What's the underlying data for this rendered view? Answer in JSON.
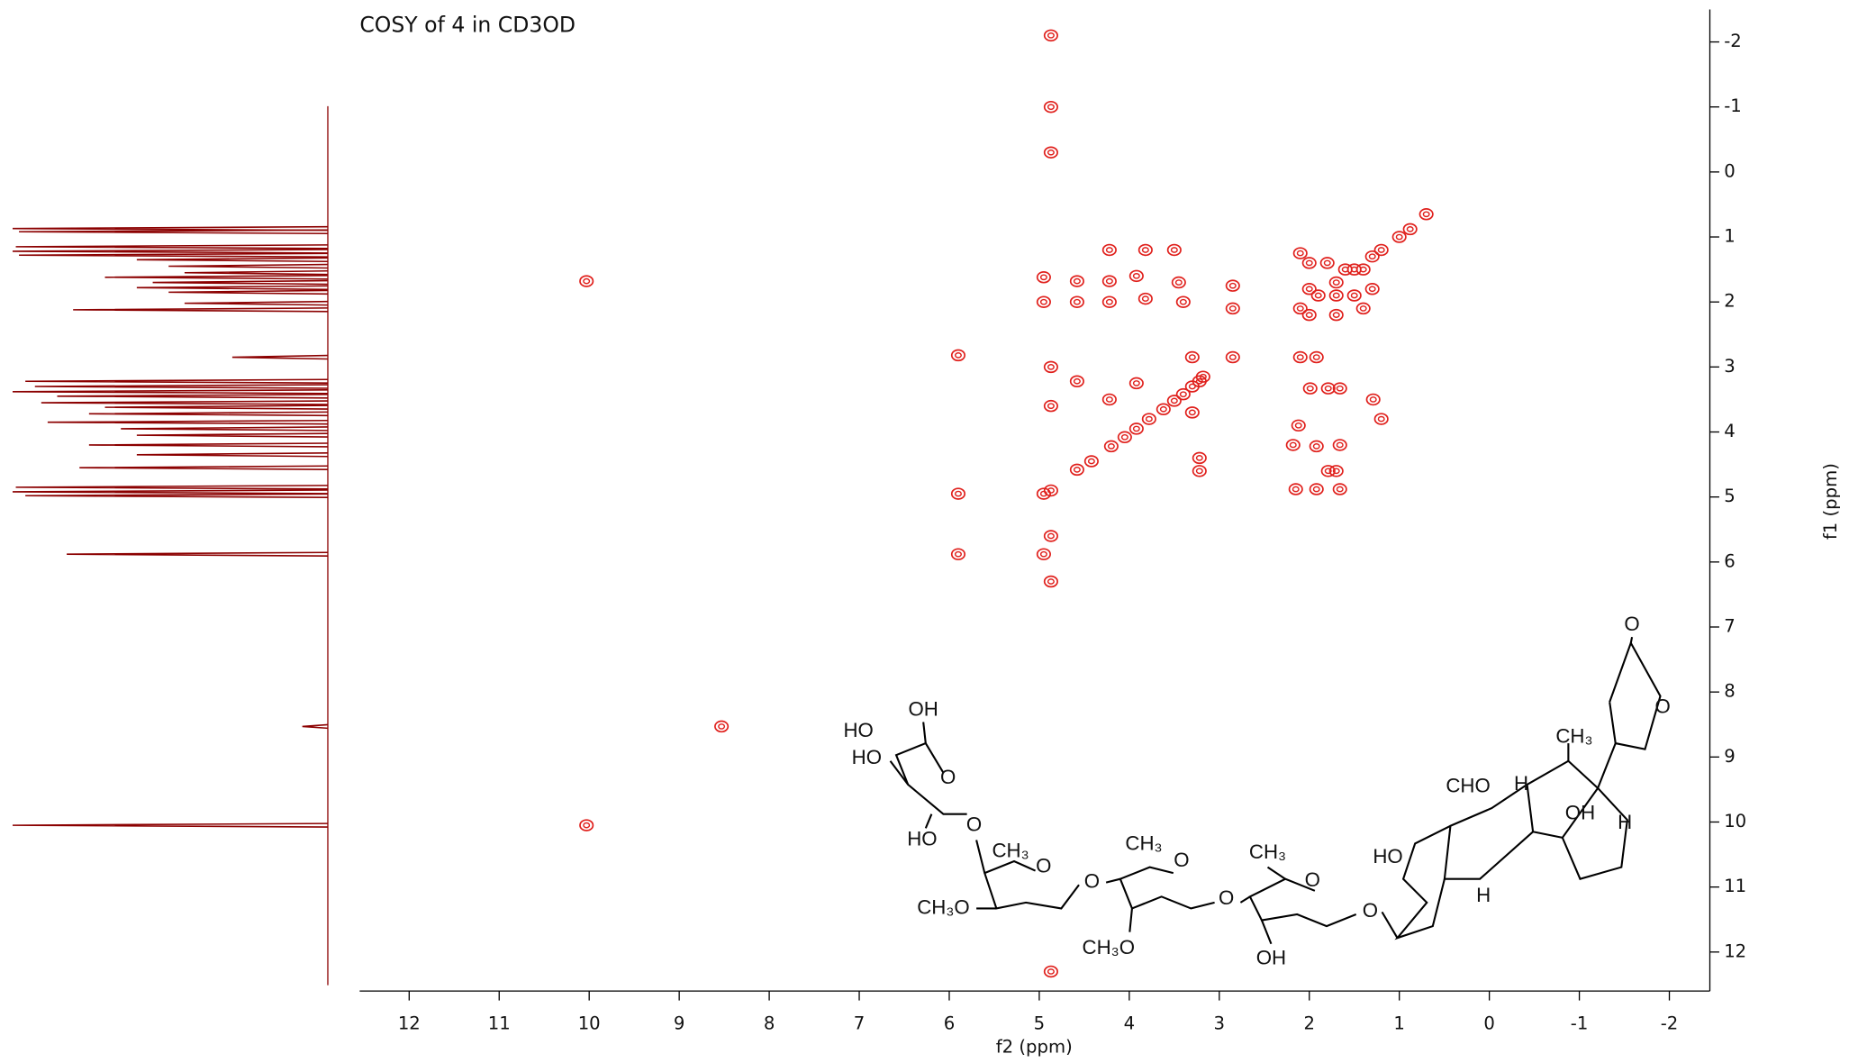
{
  "chart_data": {
    "type": "scatter",
    "title": "COSY of 4 in CD3OD",
    "xlabel": "f2 (ppm)",
    "ylabel": "f1 (ppm)",
    "xlim": [
      12.55,
      -2.45
    ],
    "ylim": [
      -2.5,
      12.6
    ],
    "xticks": [
      12,
      11,
      10,
      9,
      8,
      7,
      6,
      5,
      4,
      3,
      2,
      1,
      0,
      -1,
      -2
    ],
    "yticks": [
      -2,
      -1,
      0,
      1,
      2,
      3,
      4,
      5,
      6,
      7,
      8,
      9,
      10,
      11,
      12
    ],
    "color": "#e0201c",
    "x": [
      10.03,
      8.53,
      5.9,
      4.95,
      4.87,
      4.58,
      4.42,
      4.2,
      4.05,
      3.92,
      3.78,
      3.62,
      3.5,
      3.4,
      3.3,
      3.22,
      3.18,
      2.1,
      1.9,
      1.7,
      1.5,
      1.3,
      1.2,
      1.0,
      0.88,
      0.7,
      10.03,
      5.9,
      5.9,
      4.95,
      4.95,
      4.95,
      4.58,
      4.58,
      4.58,
      4.22,
      4.22,
      4.22,
      4.22,
      3.92,
      3.92,
      3.82,
      3.82,
      3.5,
      3.45,
      3.4,
      3.3,
      3.22,
      3.22,
      3.3,
      2.85,
      2.85,
      2.85,
      2.1,
      2.1,
      1.92,
      2.0,
      1.8,
      1.6,
      1.4,
      2.0,
      1.7,
      1.5,
      1.3,
      2.0,
      1.7,
      1.4,
      1.99,
      1.79,
      1.66,
      1.29,
      1.2,
      2.12,
      2.18,
      1.92,
      1.66,
      1.79,
      1.7,
      2.15,
      1.92,
      1.66,
      4.87,
      4.87,
      4.87,
      4.87,
      4.87,
      4.87,
      4.87,
      4.87
    ],
    "values": [
      10.05,
      8.53,
      5.88,
      4.95,
      4.9,
      4.58,
      4.45,
      4.22,
      4.08,
      3.95,
      3.8,
      3.65,
      3.52,
      3.42,
      3.3,
      3.22,
      3.15,
      2.1,
      1.9,
      1.7,
      1.5,
      1.3,
      1.2,
      1.0,
      0.88,
      0.65,
      1.68,
      4.95,
      2.82,
      5.88,
      1.62,
      2.0,
      1.68,
      2.0,
      3.22,
      1.2,
      1.68,
      2.0,
      3.5,
      1.6,
      3.25,
      1.2,
      1.95,
      1.2,
      1.7,
      2.0,
      3.7,
      4.4,
      4.6,
      2.85,
      1.75,
      2.1,
      2.85,
      1.25,
      2.85,
      2.85,
      1.4,
      1.4,
      1.5,
      1.5,
      1.8,
      1.9,
      1.9,
      1.8,
      2.2,
      2.2,
      2.1,
      3.33,
      3.33,
      3.33,
      3.5,
      3.8,
      3.9,
      4.2,
      4.22,
      4.2,
      4.6,
      4.6,
      4.88,
      4.88,
      4.88,
      -2.1,
      -1.0,
      -0.3,
      3.0,
      3.6,
      5.6,
      6.3,
      12.3
    ],
    "projection": {
      "color": "#8b0000",
      "ppm": [
        0.87,
        0.92,
        1.15,
        1.22,
        1.28,
        1.35,
        1.45,
        1.55,
        1.62,
        1.7,
        1.78,
        1.85,
        2.02,
        2.12,
        2.85,
        3.22,
        3.3,
        3.38,
        3.45,
        3.55,
        3.62,
        3.72,
        3.85,
        3.95,
        4.05,
        4.2,
        4.35,
        4.55,
        4.85,
        4.92,
        4.98,
        5.88,
        8.53,
        10.05
      ],
      "intensity": [
        99,
        97,
        98,
        99,
        97,
        60,
        50,
        45,
        70,
        55,
        60,
        50,
        45,
        80,
        30,
        95,
        92,
        99,
        85,
        90,
        70,
        75,
        88,
        65,
        60,
        75,
        60,
        78,
        98,
        99,
        95,
        82,
        8,
        99
      ]
    }
  },
  "structure": {
    "labels": [
      "O",
      "O",
      "CH₃",
      "OH",
      "H",
      "CHO",
      "H",
      "HO",
      "H",
      "O",
      "CH₃",
      "O",
      "O",
      "OH",
      "CH₃",
      "O",
      "O",
      "CH₃O",
      "CH₃",
      "O",
      "CH₃O",
      "HO",
      "OH",
      "HO",
      "O",
      "HO",
      "O"
    ]
  }
}
